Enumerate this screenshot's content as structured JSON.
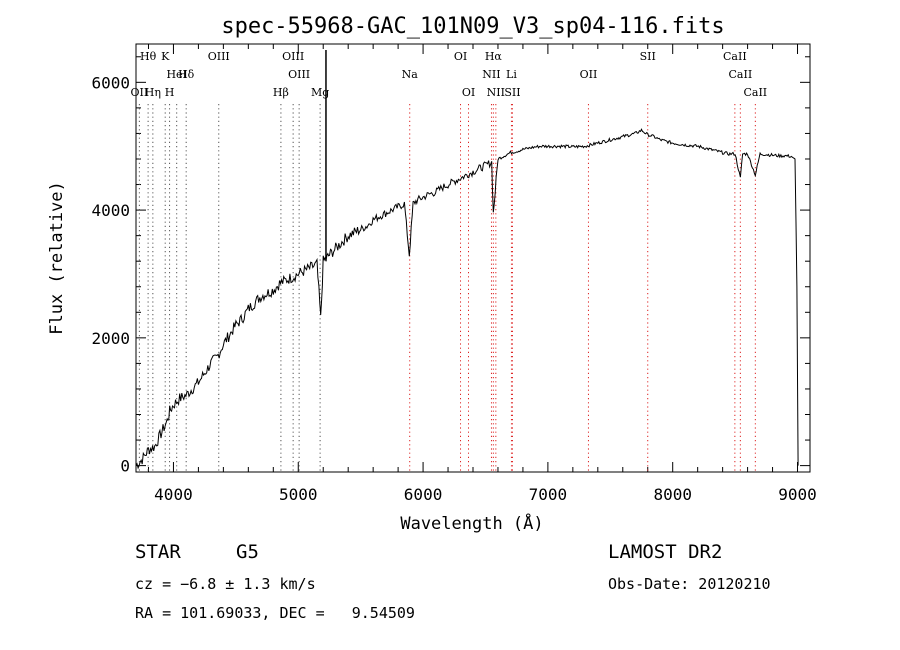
{
  "chart_data": {
    "type": "line",
    "title": "spec-55968-GAC_101N09_V3_sp04-116.fits",
    "xlabel": "Wavelength (Å)",
    "ylabel": "Flux (relative)",
    "xlim": [
      3700,
      9100
    ],
    "ylim": [
      -100,
      6600
    ],
    "x_ticks": [
      4000,
      5000,
      6000,
      7000,
      8000,
      9000
    ],
    "y_ticks": [
      0,
      2000,
      4000,
      6000
    ],
    "x_tick_labels": [
      "4000",
      "5000",
      "6000",
      "7000",
      "8000",
      "9000"
    ],
    "y_tick_labels": [
      "0",
      "2000",
      "4000",
      "6000"
    ],
    "grid": false,
    "series": [
      {
        "x": [
          3700,
          3750,
          3800,
          3850,
          3900,
          3950,
          3970,
          4000,
          4050,
          4100,
          4150,
          4200,
          4250,
          4300,
          4350,
          4400,
          4450,
          4500,
          4550,
          4600,
          4650,
          4700,
          4750,
          4800,
          4850,
          4900,
          4950,
          5000,
          5050,
          5100,
          5150,
          5180,
          5200,
          5230,
          5250,
          5300,
          5350,
          5400,
          5450,
          5500,
          5550,
          5600,
          5650,
          5700,
          5750,
          5800,
          5850,
          5890,
          5920,
          5950,
          6000,
          6050,
          6100,
          6150,
          6200,
          6250,
          6300,
          6350,
          6400,
          6450,
          6500,
          6550,
          6563,
          6600,
          6650,
          6700,
          6750,
          6800,
          6850,
          6900,
          6950,
          7000,
          7100,
          7200,
          7300,
          7400,
          7500,
          7600,
          7700,
          7750,
          7800,
          7850,
          7900,
          8000,
          8100,
          8200,
          8300,
          8400,
          8450,
          8500,
          8542,
          8560,
          8600,
          8662,
          8700,
          8750,
          8800,
          8850,
          8900,
          8950,
          8980,
          8995,
          9005
        ],
        "y": [
          0,
          100,
          250,
          300,
          500,
          700,
          850,
          950,
          1050,
          1100,
          1200,
          1300,
          1450,
          1600,
          1700,
          1900,
          2050,
          2200,
          2300,
          2450,
          2550,
          2650,
          2700,
          2750,
          2850,
          2900,
          2950,
          3000,
          3050,
          3100,
          3150,
          2300,
          3200,
          3250,
          3300,
          3400,
          3500,
          3600,
          3650,
          3700,
          3750,
          3850,
          3900,
          3950,
          4000,
          4050,
          4100,
          3300,
          4100,
          4150,
          4200,
          4250,
          4280,
          4350,
          4400,
          4450,
          4500,
          4550,
          4600,
          4650,
          4700,
          4750,
          3950,
          4800,
          4850,
          4900,
          4920,
          4950,
          4970,
          4990,
          5000,
          5000,
          5000,
          4990,
          5000,
          5050,
          5100,
          5150,
          5200,
          5250,
          5180,
          5150,
          5100,
          5050,
          5020,
          5000,
          4950,
          4900,
          4880,
          4880,
          4500,
          4880,
          4880,
          4550,
          4880,
          4870,
          4860,
          4850,
          4850,
          4840,
          4800,
          2800,
          0
        ]
      }
    ]
  },
  "lines": {
    "labels": [
      "Hθ",
      "K",
      "HeI",
      "Hδ",
      "OIII",
      "OIII",
      "OIII",
      "Hβ",
      "Mg",
      "Na",
      "OI",
      "OI",
      "Hα",
      "NII",
      "NII",
      "Li",
      "SII",
      "OII",
      "SII",
      "CaII",
      "CaII",
      "CaII",
      "OII",
      "Hη",
      "H"
    ],
    "wavelengths": [
      3797,
      3934,
      4026,
      4102,
      4363,
      4959,
      5007,
      4861,
      5175,
      5893,
      6300,
      6364,
      6563,
      6548,
      6583,
      6708,
      6716,
      7325,
      7800,
      8498,
      8542,
      8662,
      3727,
      3835,
      3969
    ]
  },
  "info": {
    "class": "STAR",
    "subclass": "G5",
    "survey": "LAMOST DR2",
    "cz": "cz = −6.8 ± 1.3 km/s",
    "obs_date": "Obs-Date: 20120210",
    "radec": "RA = 101.69033, DEC =   9.54509"
  }
}
